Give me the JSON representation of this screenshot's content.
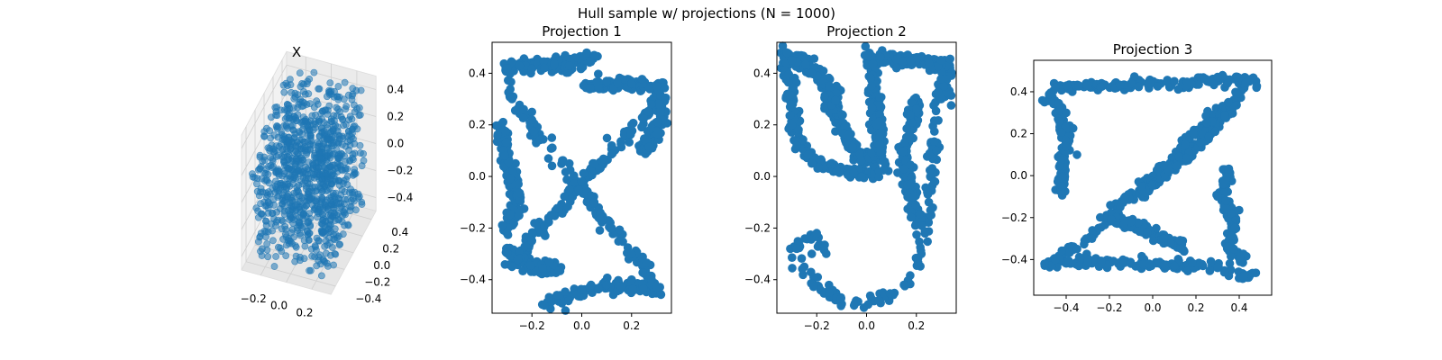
{
  "figure": {
    "title": "Hull sample w/ projections (N = 1000)"
  },
  "colors": {
    "points": "#1f77b4",
    "axes": "#000000",
    "background": "#ffffff"
  },
  "chart_data": [
    {
      "type": "scatter",
      "title": "X",
      "is_3d": true,
      "xticks": [
        "−0.2",
        "0.0",
        "0.2"
      ],
      "yticks": [
        "−0.4",
        "−0.2",
        "0.0",
        "0.2",
        "0.4"
      ],
      "zticks": [
        "−0.4",
        "−0.2",
        "0.0",
        "0.2",
        "0.4"
      ],
      "xlim": [
        -0.35,
        0.35
      ],
      "ylim": [
        -0.5,
        0.5
      ],
      "zlim": [
        -0.5,
        0.5
      ],
      "n_points": 1000
    },
    {
      "type": "scatter",
      "title": "Projection 1",
      "shape": "letter X",
      "xticks": [
        "−0.2",
        "0.0",
        "0.2"
      ],
      "yticks": [
        "−0.4",
        "−0.2",
        "0.0",
        "0.2",
        "0.4"
      ],
      "xlim": [
        -0.36,
        0.36
      ],
      "ylim": [
        -0.53,
        0.52
      ],
      "points": [
        [
          -0.3,
          0.42
        ],
        [
          -0.25,
          0.43
        ],
        [
          -0.15,
          0.42
        ],
        [
          -0.05,
          0.43
        ],
        [
          0.02,
          0.48
        ],
        [
          0.05,
          0.47
        ],
        [
          0.1,
          0.37
        ],
        [
          0.2,
          0.36
        ],
        [
          0.3,
          0.35
        ],
        [
          -0.28,
          0.3
        ],
        [
          -0.2,
          0.25
        ],
        [
          -0.12,
          0.15
        ],
        [
          -0.05,
          0.05
        ],
        [
          0.0,
          -0.02
        ],
        [
          0.05,
          -0.1
        ],
        [
          0.12,
          -0.2
        ],
        [
          0.2,
          -0.3
        ],
        [
          0.28,
          -0.4
        ],
        [
          0.3,
          -0.43
        ],
        [
          0.28,
          0.28
        ],
        [
          0.2,
          0.2
        ],
        [
          0.12,
          0.12
        ],
        [
          0.05,
          0.05
        ],
        [
          -0.05,
          -0.05
        ],
        [
          -0.12,
          -0.15
        ],
        [
          -0.2,
          -0.25
        ],
        [
          -0.28,
          -0.35
        ],
        [
          -0.3,
          -0.22
        ],
        [
          -0.15,
          -0.5
        ],
        [
          -0.1,
          -0.46
        ],
        [
          0.0,
          -0.44
        ],
        [
          0.1,
          -0.42
        ],
        [
          0.2,
          -0.4
        ]
      ],
      "n_points": 1000
    },
    {
      "type": "scatter",
      "title": "Projection 2",
      "shape": "letter y",
      "xticks": [
        "−0.2",
        "0.0",
        "0.2"
      ],
      "yticks": [
        "−0.4",
        "−0.2",
        "0.0",
        "0.2",
        "0.4"
      ],
      "xlim": [
        -0.36,
        0.36
      ],
      "ylim": [
        -0.53,
        0.52
      ],
      "points": [
        [
          -0.32,
          0.48
        ],
        [
          -0.3,
          0.45
        ],
        [
          -0.22,
          0.4
        ],
        [
          -0.15,
          0.35
        ],
        [
          -0.3,
          0.2
        ],
        [
          -0.28,
          0.12
        ],
        [
          -0.22,
          0.05
        ],
        [
          -0.12,
          0.02
        ],
        [
          -0.02,
          0.0
        ],
        [
          0.05,
          0.02
        ],
        [
          0.3,
          0.45
        ],
        [
          0.25,
          0.44
        ],
        [
          0.12,
          0.42
        ],
        [
          0.0,
          0.47
        ],
        [
          0.02,
          0.35
        ],
        [
          0.04,
          0.2
        ],
        [
          0.3,
          0.3
        ],
        [
          0.28,
          0.1
        ],
        [
          0.25,
          -0.1
        ],
        [
          0.22,
          -0.3
        ],
        [
          0.15,
          -0.42
        ],
        [
          0.05,
          -0.48
        ],
        [
          -0.05,
          -0.5
        ],
        [
          -0.15,
          -0.45
        ],
        [
          -0.25,
          -0.35
        ],
        [
          -0.28,
          -0.28
        ],
        [
          -0.2,
          -0.22
        ],
        [
          -0.22,
          -0.3
        ]
      ],
      "n_points": 1000
    },
    {
      "type": "scatter",
      "title": "Projection 3",
      "shape": "letter z",
      "xticks": [
        "−0.4",
        "−0.2",
        "0.0",
        "0.2",
        "0.4"
      ],
      "yticks": [
        "−0.4",
        "−0.2",
        "0.0",
        "0.2",
        "0.4"
      ],
      "xlim": [
        -0.55,
        0.55
      ],
      "ylim": [
        -0.57,
        0.55
      ],
      "points": [
        [
          -0.5,
          0.35
        ],
        [
          -0.45,
          0.42
        ],
        [
          -0.3,
          0.43
        ],
        [
          -0.1,
          0.44
        ],
        [
          0.1,
          0.45
        ],
        [
          0.3,
          0.47
        ],
        [
          0.45,
          0.46
        ],
        [
          0.48,
          0.42
        ],
        [
          -0.4,
          0.3
        ],
        [
          -0.35,
          0.1
        ],
        [
          -0.42,
          -0.05
        ],
        [
          0.35,
          0.35
        ],
        [
          0.25,
          0.25
        ],
        [
          0.15,
          0.15
        ],
        [
          0.05,
          0.05
        ],
        [
          -0.05,
          -0.05
        ],
        [
          -0.15,
          -0.15
        ],
        [
          -0.25,
          -0.25
        ],
        [
          -0.35,
          -0.35
        ],
        [
          -0.45,
          -0.4
        ],
        [
          -0.5,
          -0.42
        ],
        [
          -0.3,
          -0.41
        ],
        [
          -0.1,
          -0.42
        ],
        [
          0.1,
          -0.43
        ],
        [
          0.3,
          -0.44
        ],
        [
          0.42,
          -0.48
        ],
        [
          0.35,
          0.03
        ],
        [
          0.3,
          -0.1
        ],
        [
          0.38,
          -0.25
        ],
        [
          -0.1,
          -0.22
        ],
        [
          0.05,
          -0.3
        ]
      ],
      "n_points": 1000
    }
  ]
}
